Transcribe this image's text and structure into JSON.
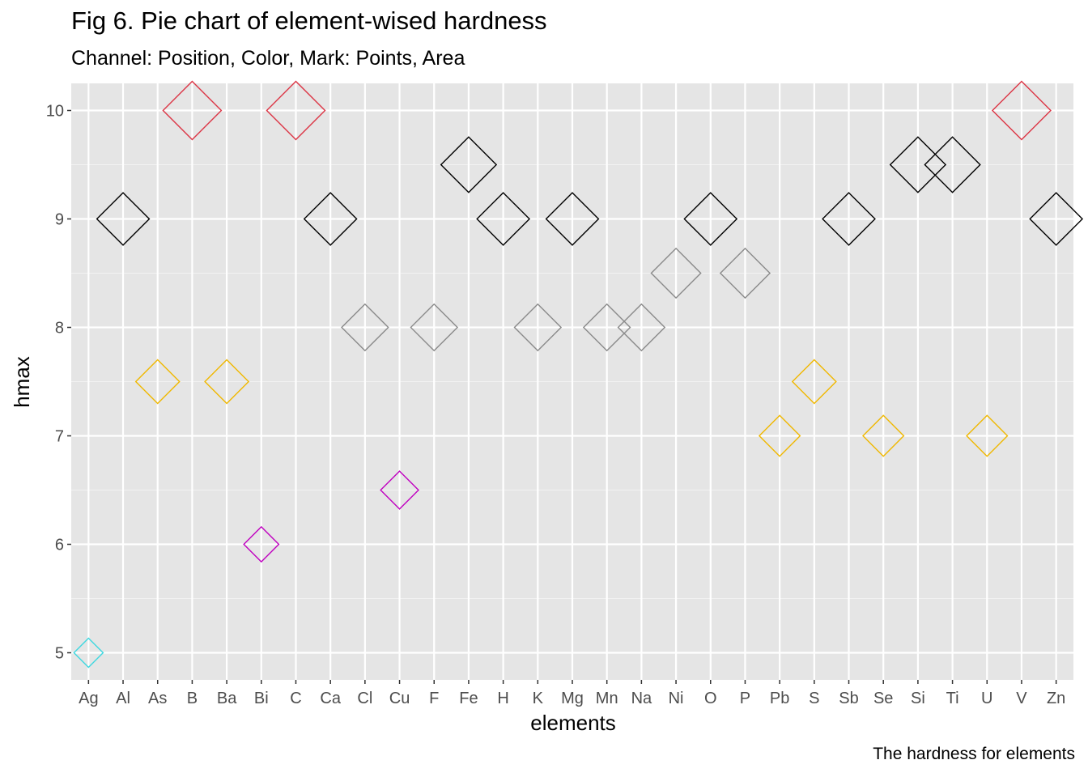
{
  "chart_data": {
    "type": "scatter",
    "title": "Fig 6. Pie chart of element-wised hardness",
    "subtitle": "Channel: Position, Color, Mark: Points, Area",
    "caption": "The hardness for elements",
    "xlabel": "elements",
    "ylabel": "hmax",
    "categories": [
      "Ag",
      "Al",
      "As",
      "B",
      "Ba",
      "Bi",
      "C",
      "Ca",
      "Cl",
      "Cu",
      "F",
      "Fe",
      "H",
      "K",
      "Mg",
      "Mn",
      "Na",
      "Ni",
      "O",
      "P",
      "Pb",
      "S",
      "Sb",
      "Se",
      "Si",
      "Ti",
      "U",
      "V",
      "Zn"
    ],
    "values": [
      5,
      9,
      7.5,
      10,
      7.5,
      6,
      10,
      9,
      8,
      6.5,
      8,
      9.5,
      9,
      8,
      9,
      8,
      8,
      8.5,
      9,
      8.5,
      7,
      7.5,
      9,
      7,
      9.5,
      9.5,
      7,
      10,
      9
    ],
    "colors": [
      "#3fd8e0",
      "#000000",
      "#f0b800",
      "#dc3545",
      "#f0b800",
      "#c000c0",
      "#dc3545",
      "#000000",
      "#8a8a8a",
      "#c000c0",
      "#8a8a8a",
      "#000000",
      "#000000",
      "#8a8a8a",
      "#000000",
      "#8a8a8a",
      "#8a8a8a",
      "#8a8a8a",
      "#000000",
      "#8a8a8a",
      "#f0b800",
      "#f0b800",
      "#000000",
      "#f0b800",
      "#000000",
      "#000000",
      "#f0b800",
      "#dc3545",
      "#000000"
    ],
    "yticks": [
      5,
      6,
      7,
      8,
      9,
      10
    ],
    "ylim": [
      4.75,
      10.25
    ],
    "marker": "diamond-open",
    "grid": true,
    "legend": "none"
  }
}
